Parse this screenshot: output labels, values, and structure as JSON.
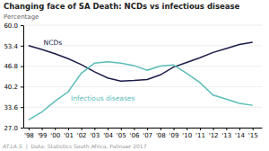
{
  "chart_data": {
    "type": "line",
    "title": "Changing face of SA Death: NCDs vs infectious disease",
    "y_label": "Percentage",
    "x": [
      1998,
      1999,
      2000,
      2001,
      2002,
      2003,
      2004,
      2005,
      2006,
      2007,
      2008,
      2009,
      2010,
      2011,
      2012,
      2013,
      2014,
      2015
    ],
    "series": [
      {
        "name": "NCDs",
        "color": "#1c1c4a",
        "values": [
          53.4,
          52.2,
          50.8,
          49.2,
          47.3,
          45.0,
          43.0,
          42.0,
          42.2,
          42.5,
          44.0,
          46.5,
          48.0,
          49.5,
          51.2,
          52.5,
          53.8,
          54.5
        ]
      },
      {
        "name": "Infectious diseases",
        "color": "#5bbdb8",
        "values": [
          29.5,
          32.0,
          35.5,
          38.5,
          44.5,
          47.8,
          48.2,
          47.8,
          47.0,
          45.5,
          46.8,
          47.2,
          44.5,
          41.5,
          37.5,
          36.2,
          34.8,
          34.2
        ]
      }
    ],
    "xlim": [
      1997.6,
      2015.7
    ],
    "xticks": [
      {
        "value": 1998,
        "label": "'98"
      },
      {
        "value": 1999,
        "label": "'99"
      },
      {
        "value": 2000,
        "label": "'00"
      },
      {
        "value": 2001,
        "label": "'01"
      },
      {
        "value": 2002,
        "label": "'02"
      },
      {
        "value": 2003,
        "label": "'03"
      },
      {
        "value": 2004,
        "label": "'04"
      },
      {
        "value": 2005,
        "label": "'05"
      },
      {
        "value": 2006,
        "label": "'06"
      },
      {
        "value": 2007,
        "label": "'07"
      },
      {
        "value": 2008,
        "label": "'08"
      },
      {
        "value": 2009,
        "label": "'09"
      },
      {
        "value": 2010,
        "label": "'10"
      },
      {
        "value": 2011,
        "label": "'11"
      },
      {
        "value": 2012,
        "label": "'12"
      },
      {
        "value": 2013,
        "label": "'13"
      },
      {
        "value": 2014,
        "label": "'14"
      },
      {
        "value": 2015,
        "label": "'15"
      }
    ],
    "ylim": [
      27.0,
      60.0
    ],
    "yticks": [
      {
        "value": 27.0,
        "label": "27.0"
      },
      33.6,
      40.2,
      46.8,
      53.4,
      {
        "value": 60.0,
        "label": "60.0"
      }
    ],
    "grid": true,
    "annotations": [
      "AT.LA.S",
      "  |  Data: Statistics South Africa, Palinaer 2017"
    ]
  }
}
